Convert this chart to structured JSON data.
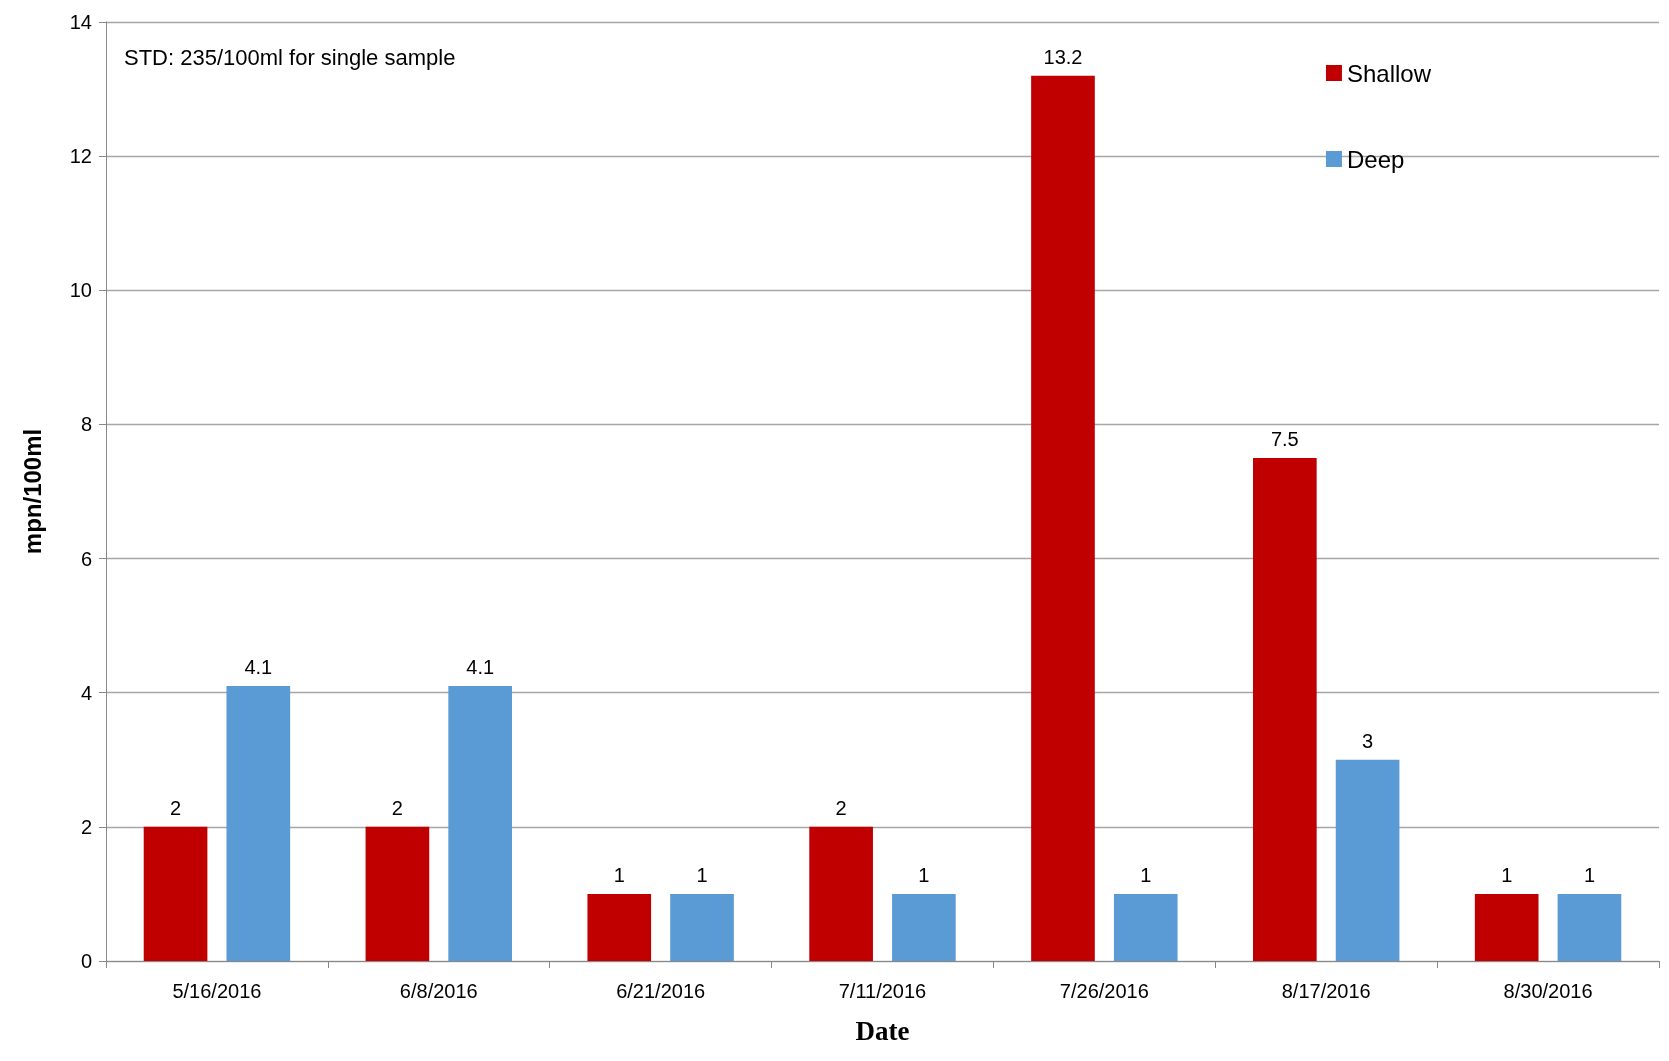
{
  "chart_data": {
    "type": "bar",
    "xlabel": "Date",
    "ylabel": "mpn/100ml",
    "annotations": [
      "STD: 235/100ml for single sample"
    ],
    "categories": [
      "5/16/2016",
      "6/8/2016",
      "6/21/2016",
      "7/11/2016",
      "7/26/2016",
      "8/17/2016",
      "8/30/2016"
    ],
    "series": [
      {
        "name": "Shallow",
        "color": "#c00000",
        "values": [
          2,
          2,
          1,
          2,
          13.2,
          7.5,
          1
        ]
      },
      {
        "name": "Deep",
        "color": "#5b9bd5",
        "values": [
          4.1,
          4.1,
          1,
          1,
          1,
          3,
          1
        ]
      }
    ],
    "ylim": [
      0,
      14
    ],
    "yticks": [
      0,
      2,
      4,
      6,
      8,
      10,
      12,
      14
    ],
    "grid": "y",
    "legend": "top right",
    "data_labels": true
  }
}
